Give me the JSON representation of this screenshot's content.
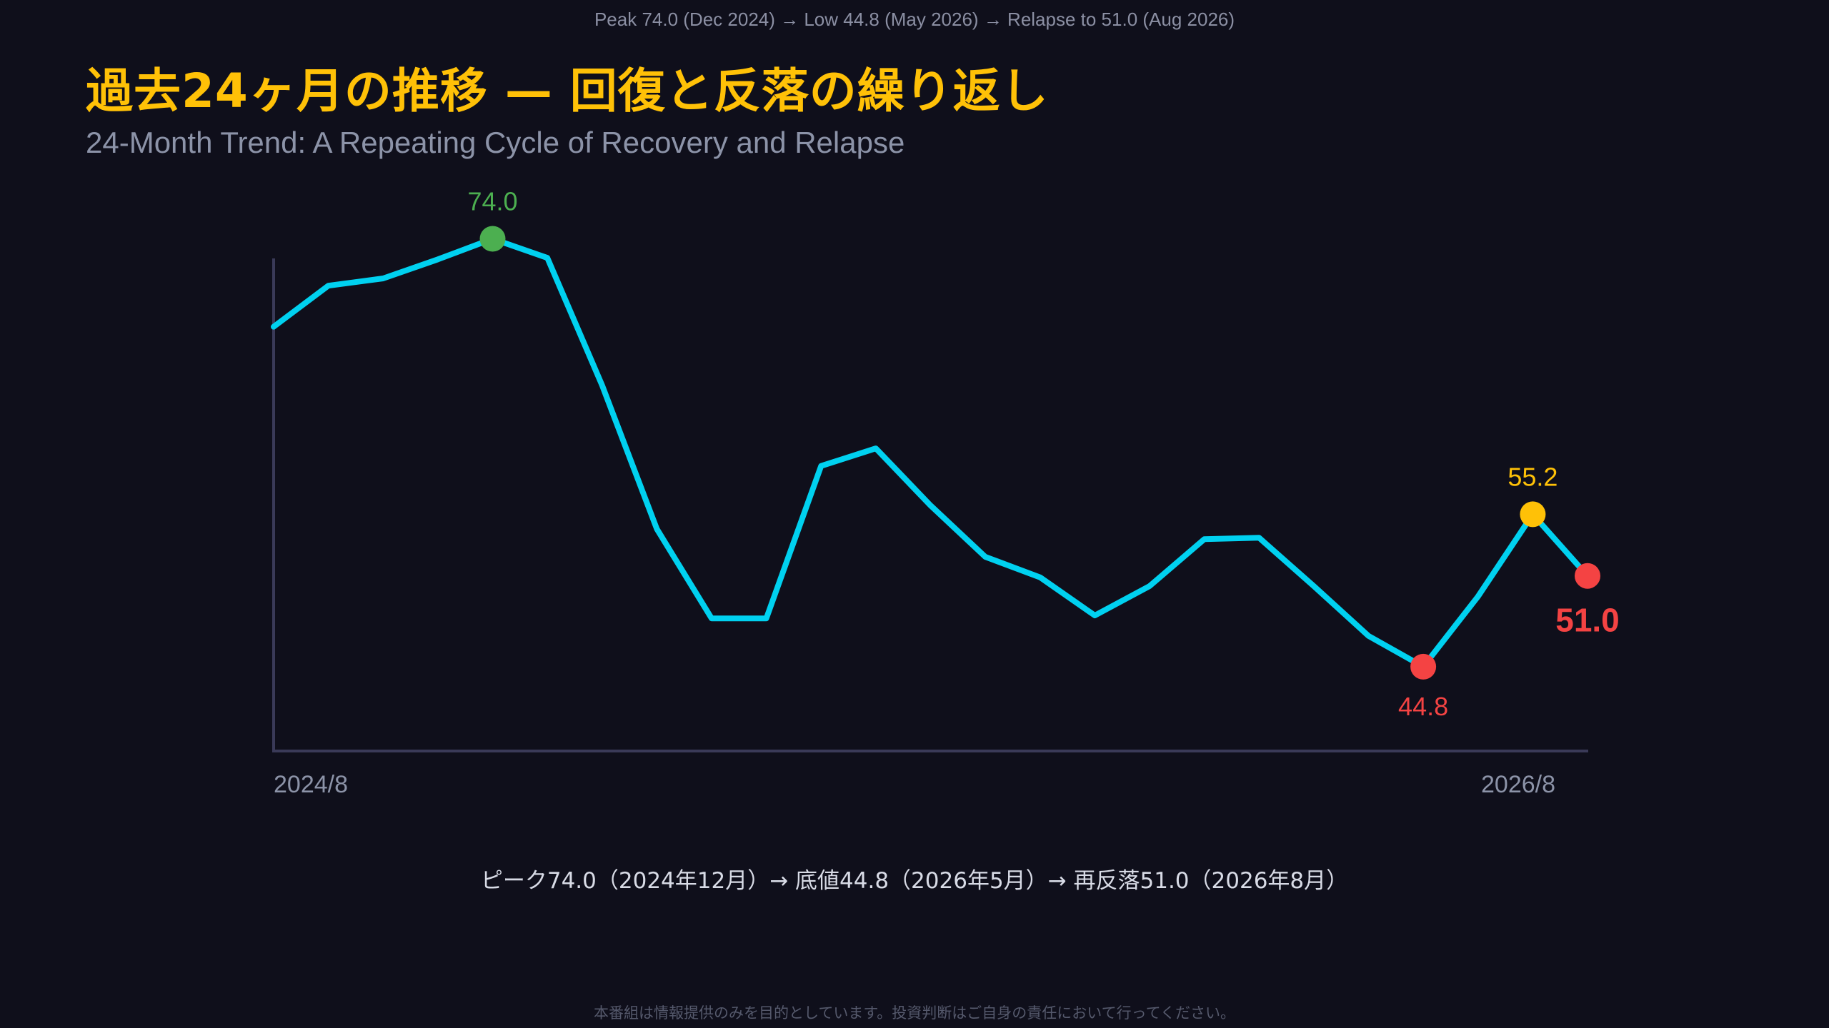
{
  "header": {
    "top_caption": "Peak 74.0 (Dec 2024) → Low 44.8 (May 2026) → Relapse to 51.0 (Aug 2026)",
    "title": "過去24ヶ月の推移 — 回復と反落の繰り返し",
    "subtitle": "24-Month Trend: A Repeating Cycle of Recovery and Relapse"
  },
  "footer": {
    "summary": "ピーク74.0（2024年12月）→ 底値44.8（2026年5月）→ 再反落51.0（2026年8月）",
    "disclaimer": "本番組は情報提供のみを目的としています。投資判断はご自身の責任において行ってください。"
  },
  "colors": {
    "line": "#00d1f0",
    "peak": "#4caf50",
    "low": "#f44343",
    "rebound": "#ffc107",
    "latest": "#f44343",
    "axis": "#3a3a58",
    "tick_text": "#8c93a8",
    "title": "#ffc107",
    "background": "#0f0f1b"
  },
  "chart_data": {
    "type": "line",
    "title": "過去24ヶ月の推移 — 回復と反落の繰り返し",
    "subtitle": "24-Month Trend: A Repeating Cycle of Recovery and Relapse",
    "xlabel": "",
    "ylabel": "",
    "x_tick_labels": [
      "2024/8",
      "2026/8"
    ],
    "categories": [
      "2024/8",
      "2024/9",
      "2024/10",
      "2024/11",
      "2024/12",
      "2025/1",
      "2025/2",
      "2025/3",
      "2025/4",
      "2025/5",
      "2025/6",
      "2025/7",
      "2025/8",
      "2025/9",
      "2025/10",
      "2025/11",
      "2025/12",
      "2026/1",
      "2026/2",
      "2026/3",
      "2026/4",
      "2026/5",
      "2026/6",
      "2026/7",
      "2026/8"
    ],
    "values": [
      68.0,
      70.8,
      71.3,
      72.6,
      74.0,
      72.7,
      64.0,
      54.2,
      48.1,
      48.1,
      58.5,
      59.7,
      55.8,
      52.3,
      50.9,
      48.3,
      50.3,
      53.5,
      53.6,
      50.3,
      46.9,
      44.8,
      49.6,
      55.2,
      51.0
    ],
    "ylim": [
      39.0,
      75.0
    ],
    "grid": false,
    "highlights": [
      {
        "index": 4,
        "label": "74.0",
        "kind": "peak"
      },
      {
        "index": 21,
        "label": "44.8",
        "kind": "low"
      },
      {
        "index": 23,
        "label": "55.2",
        "kind": "rebound"
      },
      {
        "index": 24,
        "label": "51.0",
        "kind": "latest"
      }
    ]
  }
}
